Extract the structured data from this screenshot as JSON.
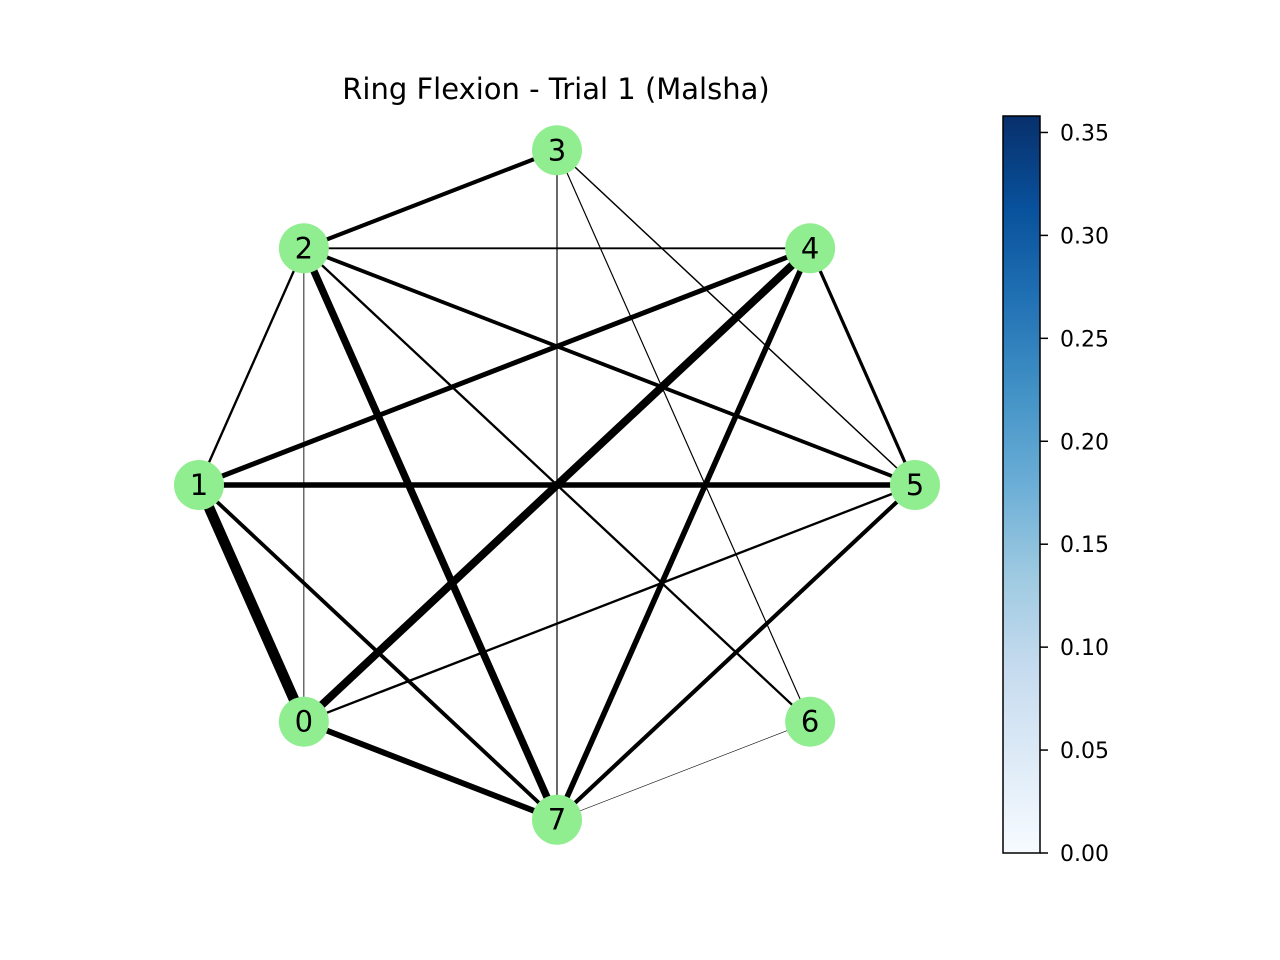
{
  "title": "Ring Flexion - Trial 1 (Malsha)",
  "node_color": "#90ee90",
  "edge_color": "#000000",
  "nodes": [
    {
      "id": "0",
      "label": "0"
    },
    {
      "id": "1",
      "label": "1"
    },
    {
      "id": "2",
      "label": "2"
    },
    {
      "id": "3",
      "label": "3"
    },
    {
      "id": "4",
      "label": "4"
    },
    {
      "id": "5",
      "label": "5"
    },
    {
      "id": "6",
      "label": "6"
    },
    {
      "id": "7",
      "label": "7"
    }
  ],
  "edges": [
    {
      "source": "1",
      "target": "0",
      "weight": 0.36
    },
    {
      "source": "0",
      "target": "4",
      "weight": 0.27
    },
    {
      "source": "2",
      "target": "7",
      "weight": 0.25
    },
    {
      "source": "0",
      "target": "7",
      "weight": 0.2
    },
    {
      "source": "4",
      "target": "7",
      "weight": 0.19
    },
    {
      "source": "1",
      "target": "5",
      "weight": 0.19
    },
    {
      "source": "1",
      "target": "4",
      "weight": 0.17
    },
    {
      "source": "2",
      "target": "3",
      "weight": 0.14
    },
    {
      "source": "5",
      "target": "7",
      "weight": 0.14
    },
    {
      "source": "2",
      "target": "5",
      "weight": 0.13
    },
    {
      "source": "1",
      "target": "7",
      "weight": 0.13
    },
    {
      "source": "4",
      "target": "5",
      "weight": 0.11
    },
    {
      "source": "1",
      "target": "2",
      "weight": 0.08
    },
    {
      "source": "2",
      "target": "6",
      "weight": 0.08
    },
    {
      "source": "0",
      "target": "5",
      "weight": 0.08
    },
    {
      "source": "2",
      "target": "4",
      "weight": 0.06
    },
    {
      "source": "3",
      "target": "5",
      "weight": 0.05
    },
    {
      "source": "3",
      "target": "6",
      "weight": 0.04
    },
    {
      "source": "3",
      "target": "7",
      "weight": 0.04
    },
    {
      "source": "0",
      "target": "2",
      "weight": 0.03
    },
    {
      "source": "6",
      "target": "7",
      "weight": 0.02
    }
  ],
  "colorbar": {
    "colormap": "Blues",
    "min": 0.0,
    "max": 0.358,
    "ticks": [
      "0.00",
      "0.05",
      "0.10",
      "0.15",
      "0.20",
      "0.25",
      "0.30",
      "0.35"
    ],
    "tick_values": [
      0.0,
      0.05,
      0.1,
      0.15,
      0.2,
      0.25,
      0.3,
      0.35
    ],
    "colors": [
      "#f7fbff",
      "#deebf7",
      "#c6dbef",
      "#9ecae1",
      "#6baed6",
      "#4292c6",
      "#2171b5",
      "#08519c",
      "#08306b"
    ]
  }
}
